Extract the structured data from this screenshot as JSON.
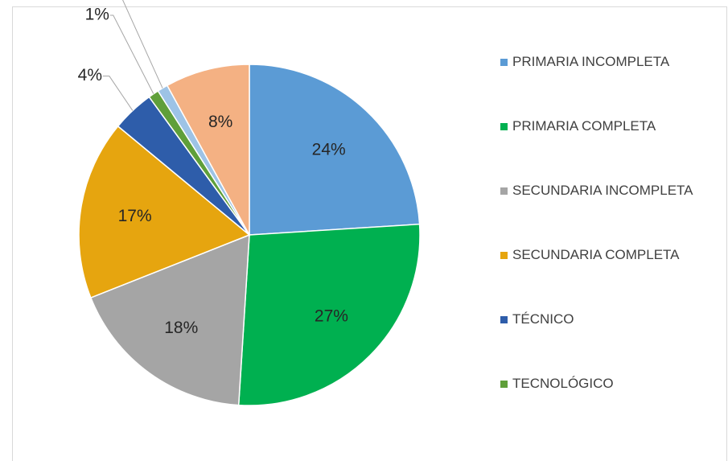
{
  "chart_data": {
    "type": "pie",
    "categories": [
      "PRIMARIA INCOMPLETA",
      "PRIMARIA COMPLETA",
      "SECUNDARIA INCOMPLETA",
      "SECUNDARIA COMPLETA",
      "TÉCNICO",
      "TECNOLÓGICO",
      null,
      null
    ],
    "values": [
      24,
      27,
      18,
      17,
      4,
      1,
      1,
      8
    ],
    "value_labels": [
      "24%",
      "27%",
      "18%",
      "17%",
      "4%",
      "1%",
      "1%",
      "8%"
    ],
    "colors": [
      "#5b9bd5",
      "#00b050",
      "#a5a5a5",
      "#e6a50f",
      "#2e5daa",
      "#5f9f3a",
      "#9dc3e6",
      "#f4b183"
    ],
    "legend": "right"
  }
}
